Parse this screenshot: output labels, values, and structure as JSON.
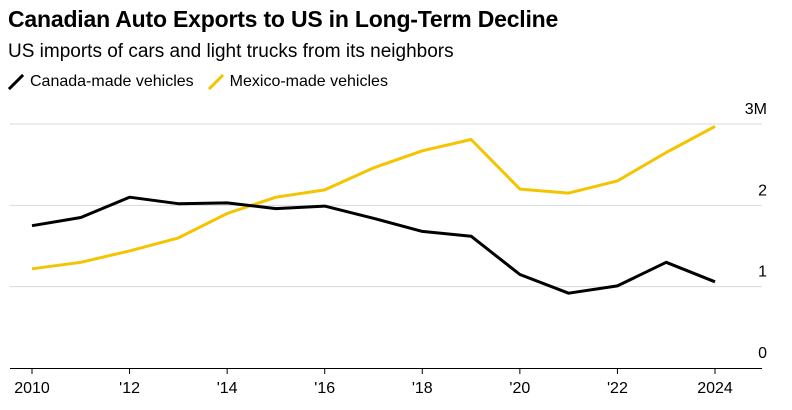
{
  "header": {
    "title": "Canadian Auto Exports to US in Long-Term Decline",
    "subtitle": "US imports of cars and light trucks from its neighbors"
  },
  "chart_data": {
    "type": "line",
    "x": [
      2010,
      2011,
      2012,
      2013,
      2014,
      2015,
      2016,
      2017,
      2018,
      2019,
      2020,
      2021,
      2022,
      2023,
      2024
    ],
    "series": [
      {
        "name": "Canada-made vehicles",
        "color": "#000000",
        "values": [
          1.75,
          1.85,
          2.1,
          2.02,
          2.03,
          1.96,
          1.99,
          1.84,
          1.68,
          1.62,
          1.15,
          0.92,
          1.01,
          1.3,
          1.06
        ]
      },
      {
        "name": "Mexico-made vehicles",
        "color": "#f5c400",
        "values": [
          1.22,
          1.3,
          1.44,
          1.6,
          1.9,
          2.1,
          2.19,
          2.46,
          2.67,
          2.81,
          2.2,
          2.15,
          2.3,
          2.65,
          2.97
        ]
      }
    ],
    "x_tick_values": [
      2010,
      2012,
      2014,
      2016,
      2018,
      2020,
      2022,
      2024
    ],
    "x_tick_labels": [
      "2010",
      "'12",
      "'14",
      "'16",
      "'18",
      "'20",
      "'22",
      "2024"
    ],
    "y_tick_values": [
      0,
      1,
      2,
      3
    ],
    "y_tick_labels": [
      "0",
      "1",
      "2",
      "3M"
    ],
    "xlim": [
      2010,
      2024
    ],
    "ylim": [
      0,
      3
    ],
    "grid": true,
    "legend_position": "top-left"
  }
}
